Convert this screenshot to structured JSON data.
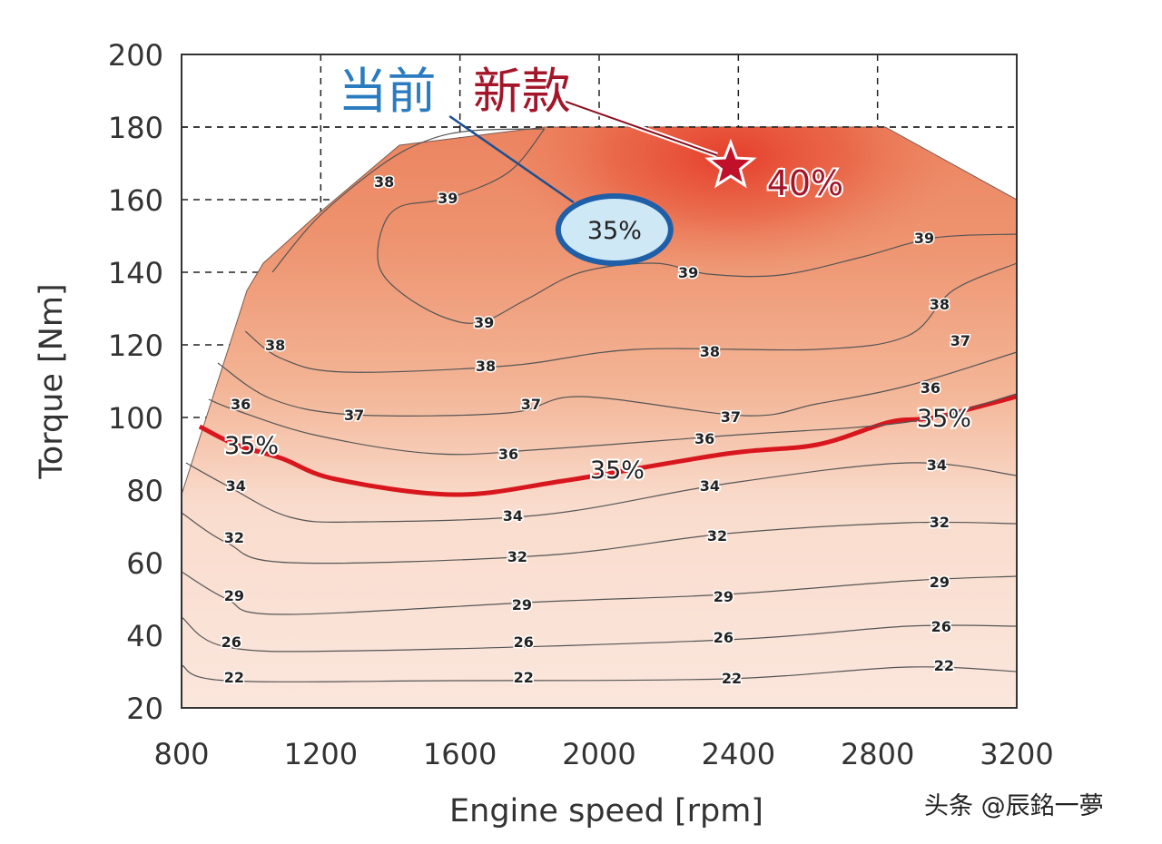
{
  "chart_data": {
    "type": "contour",
    "title": "",
    "xlabel": "Engine speed [rpm]",
    "ylabel": "Torque [Nm]",
    "xlim": [
      800,
      3200
    ],
    "ylim": [
      20,
      200
    ],
    "xticks": [
      800,
      1200,
      1600,
      2000,
      2400,
      2800,
      3200
    ],
    "yticks": [
      20,
      40,
      60,
      80,
      100,
      120,
      140,
      160,
      180,
      200
    ],
    "grid": "dashed",
    "colors": {
      "low": "#fbe6dc",
      "mid": "#ee9470",
      "high": "#e53a28",
      "line": "#555555",
      "line35": "#d8161e",
      "current": "#2a7bbf",
      "new": "#a3162a"
    },
    "max_torque_curve": [
      [
        800,
        78.75
      ],
      [
        988,
        135
      ],
      [
        1035,
        142.5
      ],
      [
        1191,
        156
      ],
      [
        1426,
        175
      ],
      [
        1843,
        180
      ],
      [
        2822,
        180
      ],
      [
        3200,
        160
      ]
    ],
    "contours": [
      {
        "level": 22,
        "points": [
          [
            800,
            31.75
          ],
          [
            930,
            27.5
          ],
          [
            1583,
            27.5
          ],
          [
            2365,
            28
          ],
          [
            2887,
            31.25
          ],
          [
            3200,
            30
          ]
        ]
      },
      {
        "level": 26,
        "points": [
          [
            800,
            45
          ],
          [
            930,
            36.75
          ],
          [
            1322,
            35.75
          ],
          [
            2365,
            38.75
          ],
          [
            2887,
            42.5
          ],
          [
            3200,
            42.5
          ]
        ]
      },
      {
        "level": 29,
        "points": [
          [
            800,
            57.5
          ],
          [
            930,
            50
          ],
          [
            1087,
            45.75
          ],
          [
            1843,
            49.25
          ],
          [
            2365,
            51.25
          ],
          [
            2887,
            55
          ],
          [
            3200,
            56.25
          ]
        ]
      },
      {
        "level": 32,
        "points": [
          [
            800,
            73.75
          ],
          [
            930,
            65.5
          ],
          [
            1113,
            60
          ],
          [
            1843,
            62
          ],
          [
            2365,
            68
          ],
          [
            2887,
            71
          ],
          [
            3200,
            70.75
          ]
        ]
      },
      {
        "level": 34,
        "points": [
          [
            813,
            87.5
          ],
          [
            930,
            81.25
          ],
          [
            1113,
            72.5
          ],
          [
            1322,
            71.25
          ],
          [
            1843,
            73.25
          ],
          [
            2365,
            81.75
          ],
          [
            2887,
            87.5
          ],
          [
            3200,
            84
          ]
        ]
      },
      {
        "level": 35,
        "highlight": true,
        "points": [
          [
            852,
            97.5
          ],
          [
            956,
            92.5
          ],
          [
            1087,
            88.75
          ],
          [
            1243,
            83
          ],
          [
            1583,
            78.75
          ],
          [
            1896,
            82.5
          ],
          [
            2365,
            90
          ],
          [
            2626,
            92.5
          ],
          [
            2835,
            98.75
          ],
          [
            2965,
            100
          ],
          [
            3200,
            105.75
          ]
        ]
      },
      {
        "level": 36,
        "points": [
          [
            878,
            105
          ],
          [
            956,
            102
          ],
          [
            1191,
            95
          ],
          [
            1530,
            90
          ],
          [
            1843,
            91.25
          ],
          [
            2365,
            95
          ],
          [
            2887,
            98.75
          ],
          [
            3200,
            106.5
          ]
        ]
      },
      {
        "level": 37,
        "points": [
          [
            904,
            115
          ],
          [
            1061,
            105
          ],
          [
            1296,
            100.75
          ],
          [
            1739,
            101.25
          ],
          [
            1948,
            105.75
          ],
          [
            2417,
            100.5
          ],
          [
            2626,
            103.75
          ],
          [
            2887,
            108.75
          ],
          [
            3200,
            118
          ]
        ]
      },
      {
        "level": 38,
        "points": [
          [
            983,
            123.75
          ],
          [
            1087,
            116.25
          ],
          [
            1270,
            112.5
          ],
          [
            1739,
            114.25
          ],
          [
            2104,
            118.75
          ],
          [
            2626,
            118.75
          ],
          [
            2887,
            122.5
          ],
          [
            3017,
            135
          ],
          [
            3200,
            142.5
          ]
        ]
      },
      {
        "level": 38,
        "points": [
          [
            1061,
            140
          ],
          [
            1191,
            155
          ],
          [
            1374,
            169.5
          ],
          [
            1504,
            176.25
          ],
          [
            1635,
            179
          ],
          [
            1843,
            179.5
          ]
        ]
      },
      {
        "level": 39,
        "points": [
          [
            1843,
            179.5
          ],
          [
            1739,
            167.5
          ],
          [
            1570,
            160.5
          ],
          [
            1426,
            158
          ],
          [
            1374,
            151.25
          ],
          [
            1369,
            141.25
          ],
          [
            1439,
            133.75
          ],
          [
            1557,
            127.5
          ],
          [
            1661,
            126.25
          ],
          [
            1791,
            132.5
          ],
          [
            1948,
            140
          ],
          [
            2157,
            142.5
          ],
          [
            2313,
            139.5
          ],
          [
            2522,
            139.25
          ],
          [
            2757,
            144.25
          ],
          [
            2965,
            149.5
          ],
          [
            3200,
            150.5
          ]
        ]
      }
    ],
    "contour_labels": [
      {
        "text": "38",
        "x": 1382,
        "y": 165
      },
      {
        "text": "39",
        "x": 1565,
        "y": 160.5
      },
      {
        "text": "39",
        "x": 2934,
        "y": 149.5
      },
      {
        "text": "39",
        "x": 2256,
        "y": 140
      },
      {
        "text": "39",
        "x": 1669,
        "y": 126.25
      },
      {
        "text": "38",
        "x": 1069,
        "y": 120
      },
      {
        "text": "38",
        "x": 1674,
        "y": 114.25
      },
      {
        "text": "38",
        "x": 2318,
        "y": 118.25
      },
      {
        "text": "38",
        "x": 2978,
        "y": 131.25
      },
      {
        "text": "37",
        "x": 3038,
        "y": 121.25
      },
      {
        "text": "37",
        "x": 1296,
        "y": 100.75
      },
      {
        "text": "37",
        "x": 1804,
        "y": 103.75
      },
      {
        "text": "37",
        "x": 2378,
        "y": 100.25
      },
      {
        "text": "36",
        "x": 970,
        "y": 103.75
      },
      {
        "text": "36",
        "x": 1739,
        "y": 90
      },
      {
        "text": "36",
        "x": 2303,
        "y": 94.25
      },
      {
        "text": "36",
        "x": 2952,
        "y": 108.25
      },
      {
        "text": "34",
        "x": 956,
        "y": 81.25
      },
      {
        "text": "34",
        "x": 1752,
        "y": 73
      },
      {
        "text": "34",
        "x": 2318,
        "y": 81.25
      },
      {
        "text": "34",
        "x": 2970,
        "y": 87
      },
      {
        "text": "32",
        "x": 951,
        "y": 67
      },
      {
        "text": "32",
        "x": 1765,
        "y": 61.75
      },
      {
        "text": "32",
        "x": 2339,
        "y": 67.5
      },
      {
        "text": "32",
        "x": 2978,
        "y": 71.25
      },
      {
        "text": "29",
        "x": 951,
        "y": 51
      },
      {
        "text": "29",
        "x": 1778,
        "y": 48.5
      },
      {
        "text": "29",
        "x": 2357,
        "y": 50.75
      },
      {
        "text": "29",
        "x": 2978,
        "y": 54.75
      },
      {
        "text": "26",
        "x": 943,
        "y": 38.25
      },
      {
        "text": "26",
        "x": 1783,
        "y": 38.25
      },
      {
        "text": "26",
        "x": 2357,
        "y": 39.5
      },
      {
        "text": "26",
        "x": 2983,
        "y": 42.5
      },
      {
        "text": "22",
        "x": 951,
        "y": 28.5
      },
      {
        "text": "22",
        "x": 1783,
        "y": 28.5
      },
      {
        "text": "22",
        "x": 2381,
        "y": 28.25
      },
      {
        "text": "22",
        "x": 2991,
        "y": 31.75
      }
    ],
    "line35_labels": [
      {
        "text": "35%",
        "x": 1001,
        "y": 92.5
      },
      {
        "text": "35%",
        "x": 2052,
        "y": 85.75
      },
      {
        "text": "35%",
        "x": 2991,
        "y": 100
      }
    ],
    "annotations": {
      "current": {
        "label": "当前",
        "label_x": 1391,
        "label_y": 190.75,
        "value": "35%",
        "x": 2044,
        "y": 151.75,
        "leader_from": [
          1570,
          183
        ]
      },
      "new": {
        "label": "新款",
        "label_x": 1778,
        "label_y": 190.75,
        "value": "40%",
        "star_x": 2378,
        "star_y": 169.25,
        "value_x": 2592,
        "value_y": 165,
        "leader_from": [
          1904,
          187
        ]
      }
    }
  },
  "watermark": "头条 @辰銘一夢"
}
